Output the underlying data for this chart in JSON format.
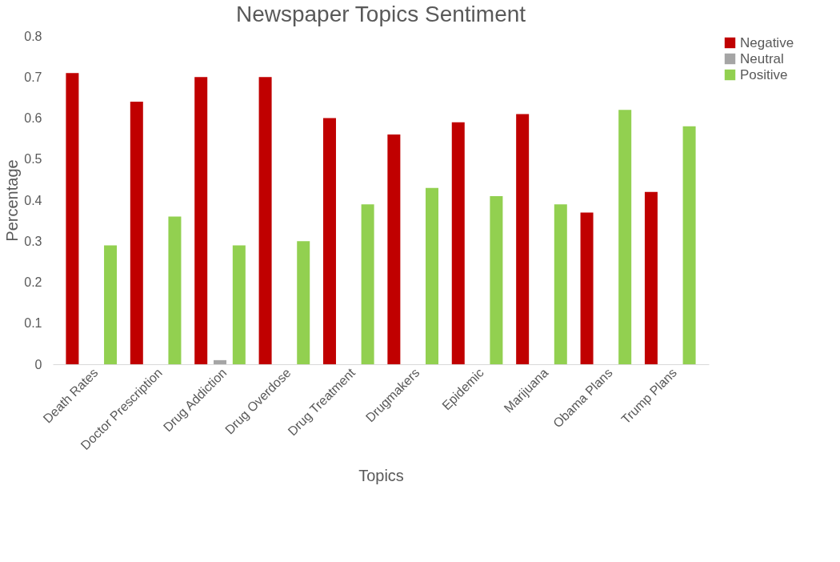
{
  "chart_data": {
    "type": "bar",
    "title": "Newspaper Topics Sentiment",
    "xlabel": "Topics",
    "ylabel": "Percentage",
    "categories": [
      "Death Rates",
      "Doctor Prescription",
      "Drug Addiction",
      "Drug Overdose",
      "Drug Treatment",
      "Drugmakers",
      "Epidemic",
      "Marijuana",
      "Obama Plans",
      "Trump Plans"
    ],
    "series": [
      {
        "name": "Negative",
        "color": "#c00000",
        "values": [
          0.71,
          0.64,
          0.7,
          0.7,
          0.6,
          0.56,
          0.59,
          0.61,
          0.37,
          0.42
        ]
      },
      {
        "name": "Neutral",
        "color": "#a5a5a5",
        "values": [
          0,
          0,
          0.01,
          0,
          0,
          0,
          0,
          0,
          0,
          0
        ]
      },
      {
        "name": "Positive",
        "color": "#92d050",
        "values": [
          0.29,
          0.36,
          0.29,
          0.3,
          0.39,
          0.43,
          0.41,
          0.39,
          0.62,
          0.58
        ]
      }
    ],
    "ylim": [
      0,
      0.8
    ],
    "yticks": [
      0,
      0.1,
      0.2,
      0.3,
      0.4,
      0.5,
      0.6,
      0.7,
      0.8
    ],
    "grid": false,
    "legend": "right"
  }
}
